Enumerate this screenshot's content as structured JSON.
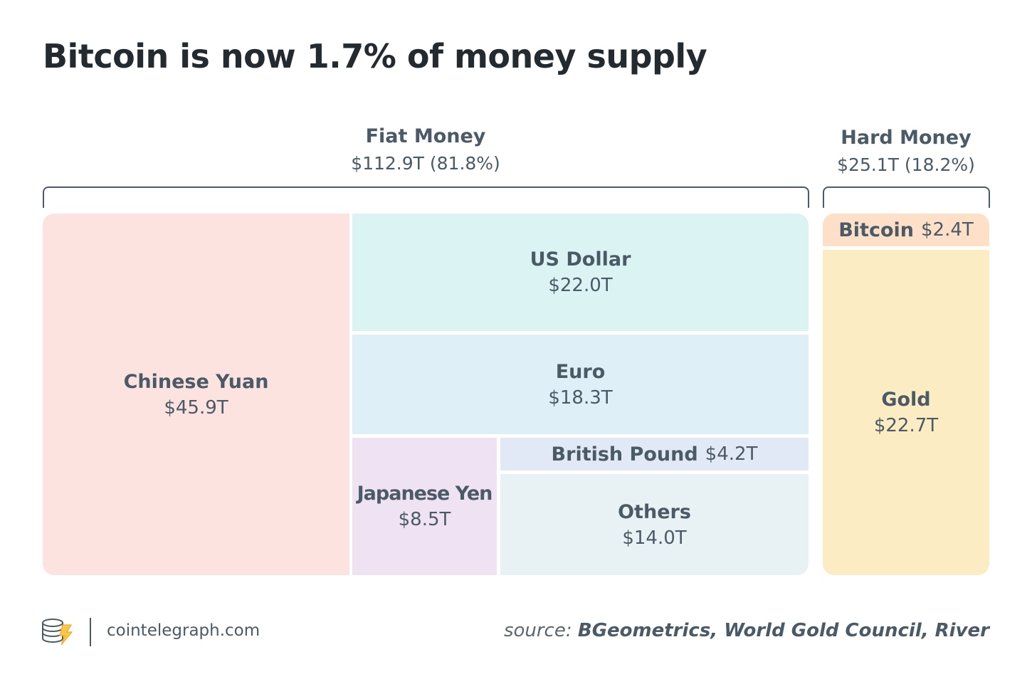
{
  "title": "Bitcoin is now 1.7% of money supply",
  "chart_data": {
    "type": "treemap",
    "title": "Bitcoin is now 1.7% of money supply",
    "unit": "T",
    "groups": [
      {
        "name": "Fiat Money",
        "value_label": "$112.9T (81.8%)",
        "value": 112.9,
        "percent": 81.8,
        "items": [
          {
            "name": "Chinese Yuan",
            "value": 45.9,
            "value_label": "$45.9T",
            "color": "#fde3e0"
          },
          {
            "name": "US Dollar",
            "value": 22.0,
            "value_label": "$22.0T",
            "color": "#dbf3f3"
          },
          {
            "name": "Euro",
            "value": 18.3,
            "value_label": "$18.3T",
            "color": "#deeff8"
          },
          {
            "name": "Japanese Yen",
            "value": 8.5,
            "value_label": "$8.5T",
            "color": "#efe3f3"
          },
          {
            "name": "British Pound",
            "value": 4.2,
            "value_label": "$4.2T",
            "color": "#e2e9f6"
          },
          {
            "name": "Others",
            "value": 14.0,
            "value_label": "$14.0T",
            "color": "#e8f1f3"
          }
        ]
      },
      {
        "name": "Hard Money",
        "value_label": "$25.1T (18.2%)",
        "value": 25.1,
        "percent": 18.2,
        "items": [
          {
            "name": "Bitcoin",
            "value": 2.4,
            "value_label": "$2.4T",
            "color": "#fde0c7"
          },
          {
            "name": "Gold",
            "value": 22.7,
            "value_label": "$22.7T",
            "color": "#fcecc3"
          }
        ]
      }
    ]
  },
  "footer": {
    "site": "cointelegraph.com",
    "logo_icon": "cointelegraph-logo-icon",
    "source_label": "source:",
    "source_text": "BGeometrics, World Gold Council, River"
  }
}
